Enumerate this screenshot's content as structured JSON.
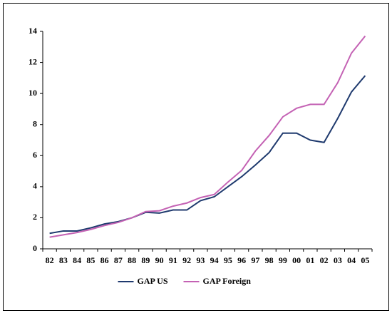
{
  "chart_data": {
    "type": "line",
    "categories": [
      "82",
      "83",
      "84",
      "85",
      "86",
      "87",
      "88",
      "89",
      "90",
      "91",
      "92",
      "93",
      "94",
      "95",
      "96",
      "97",
      "98",
      "99",
      "00",
      "01",
      "02",
      "03",
      "04",
      "05"
    ],
    "series": [
      {
        "name": "GAP US",
        "color": "#1f3a6e",
        "values": [
          1.0,
          1.15,
          1.15,
          1.35,
          1.6,
          1.75,
          2.0,
          2.35,
          2.3,
          2.5,
          2.5,
          3.1,
          3.35,
          4.0,
          4.65,
          5.4,
          6.2,
          7.45,
          7.45,
          7.0,
          6.85,
          8.4,
          10.1,
          11.15
        ]
      },
      {
        "name": "GAP Foreign",
        "color": "#c462b4",
        "values": [
          0.75,
          0.9,
          1.05,
          1.25,
          1.5,
          1.7,
          2.0,
          2.4,
          2.45,
          2.75,
          2.95,
          3.3,
          3.5,
          4.3,
          5.05,
          6.3,
          7.3,
          8.5,
          9.05,
          9.3,
          9.3,
          10.7,
          12.6,
          13.7
        ]
      }
    ],
    "ylim": [
      0,
      14
    ],
    "yticks": [
      0,
      2,
      4,
      6,
      8,
      10,
      12,
      14
    ],
    "grid": false,
    "legend": "bottom"
  }
}
